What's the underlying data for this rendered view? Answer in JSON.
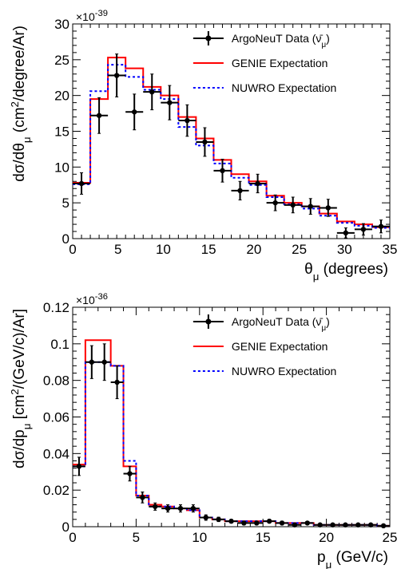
{
  "chart_data": [
    {
      "type": "line",
      "xlabel": "θ_μ (degrees)",
      "ylabel": "dσ/dθ_μ (cm²/degree/Ar)",
      "y_exponent": "×10^-39",
      "xlim": [
        0,
        36
      ],
      "ylim": [
        0,
        30
      ],
      "x_ticks": [
        "0",
        "5",
        "10",
        "15",
        "20",
        "25",
        "30",
        "35"
      ],
      "y_ticks": [
        "0",
        "5",
        "10",
        "15",
        "20",
        "25",
        "30"
      ],
      "legend_position": "top-right",
      "legend": [
        {
          "label": "ArgoNeuT Data (ν̄_μ)",
          "color": "#000000",
          "style": "marker"
        },
        {
          "label": "GENIE Expectation",
          "color": "#ff0000",
          "style": "solid"
        },
        {
          "label": "NUWRO Expectation",
          "color": "#0000ff",
          "style": "dotted"
        }
      ],
      "bin_edges": [
        0,
        2,
        4,
        6,
        8,
        10,
        12,
        14,
        16,
        18,
        20,
        22,
        24,
        26,
        28,
        30,
        32,
        34,
        36
      ],
      "series": [
        {
          "name": "GENIE Expectation",
          "values": [
            7.8,
            19.5,
            25.3,
            23.8,
            21.2,
            20.0,
            17.0,
            14.0,
            11.0,
            9.0,
            8.0,
            6.0,
            5.0,
            4.5,
            3.5,
            2.4,
            2.0,
            1.6
          ]
        },
        {
          "name": "NUWRO Expectation",
          "values": [
            7.6,
            20.6,
            24.3,
            22.6,
            20.8,
            19.5,
            15.6,
            13.0,
            10.5,
            8.5,
            7.5,
            5.8,
            4.8,
            4.2,
            3.2,
            2.2,
            1.8,
            1.5
          ]
        },
        {
          "name": "ArgoNeuT Data (ν̄_μ)",
          "x": [
            1,
            3,
            5,
            7,
            9,
            11,
            13,
            15,
            17,
            19,
            21,
            23,
            25,
            27,
            29,
            31,
            33,
            35
          ],
          "values": [
            7.7,
            17.2,
            22.8,
            17.7,
            20.5,
            19.0,
            16.5,
            13.5,
            9.5,
            6.7,
            7.7,
            5.0,
            4.7,
            4.5,
            4.3,
            0.8,
            1.3,
            1.7
          ],
          "errors": [
            1.5,
            2.5,
            3.0,
            2.5,
            2.5,
            2.4,
            2.2,
            2.0,
            1.6,
            1.3,
            1.3,
            1.1,
            1.1,
            1.1,
            1.2,
            0.7,
            0.8,
            0.9
          ]
        }
      ]
    },
    {
      "type": "line",
      "xlabel": "p_μ (GeV/c)",
      "ylabel": "dσ/dp_μ [cm²/(GeV/c)/Ar]",
      "y_exponent": "×10^-36",
      "xlim": [
        0,
        25
      ],
      "ylim": [
        0,
        0.12
      ],
      "x_ticks": [
        "0",
        "5",
        "10",
        "15",
        "20",
        "25"
      ],
      "y_ticks": [
        "0",
        "0.02",
        "0.04",
        "0.06",
        "0.08",
        "0.1",
        "0.12"
      ],
      "legend_position": "top-right",
      "legend": [
        {
          "label": "ArgoNeuT Data (ν̄_μ)",
          "color": "#000000",
          "style": "marker"
        },
        {
          "label": "GENIE Expectation",
          "color": "#ff0000",
          "style": "solid"
        },
        {
          "label": "NUWRO Expectation",
          "color": "#0000ff",
          "style": "dotted"
        }
      ],
      "bin_edges": [
        0,
        1,
        2,
        3,
        4,
        5,
        6,
        7,
        8,
        9,
        10,
        11,
        12,
        13,
        14,
        15,
        16,
        17,
        18,
        19,
        20,
        21,
        22,
        23,
        24,
        25
      ],
      "series": [
        {
          "name": "GENIE Expectation",
          "values": [
            0.034,
            0.102,
            0.102,
            0.088,
            0.033,
            0.017,
            0.012,
            0.011,
            0.01,
            0.009,
            0.005,
            0.004,
            0.003,
            0.003,
            0.003,
            0.003,
            0.002,
            0.002,
            0.002,
            0.001,
            0.001,
            0.001,
            0.001,
            0.001,
            0.0005
          ]
        },
        {
          "name": "NUWRO Expectation",
          "values": [
            0.033,
            0.09,
            0.09,
            0.088,
            0.036,
            0.017,
            0.011,
            0.011,
            0.01,
            0.009,
            0.005,
            0.004,
            0.003,
            0.003,
            0.003,
            0.003,
            0.002,
            0.002,
            0.002,
            0.001,
            0.001,
            0.001,
            0.001,
            0.001,
            0.0005
          ]
        },
        {
          "name": "ArgoNeuT Data (ν̄_μ)",
          "x": [
            0.5,
            1.5,
            2.5,
            3.5,
            4.5,
            5.5,
            6.5,
            7.5,
            8.5,
            9.5,
            10.5,
            11.5,
            12.5,
            13.5,
            14.5,
            15.5,
            16.5,
            17.5,
            18.5,
            19.5,
            20.5,
            21.5,
            22.5,
            23.5,
            24.5
          ],
          "values": [
            0.033,
            0.09,
            0.09,
            0.079,
            0.029,
            0.016,
            0.011,
            0.01,
            0.01,
            0.01,
            0.005,
            0.004,
            0.003,
            0.002,
            0.002,
            0.003,
            0.002,
            0.001,
            0.002,
            0.001,
            0.001,
            0.001,
            0.001,
            0.001,
            0.0005
          ],
          "errors": [
            0.005,
            0.009,
            0.01,
            0.009,
            0.004,
            0.003,
            0.002,
            0.002,
            0.002,
            0.002,
            0.0015,
            0.0012,
            0.001,
            0.001,
            0.001,
            0.001,
            0.001,
            0.0008,
            0.0008,
            0.0006,
            0.0006,
            0.0005,
            0.0005,
            0.0005,
            0.0004
          ]
        }
      ]
    }
  ]
}
